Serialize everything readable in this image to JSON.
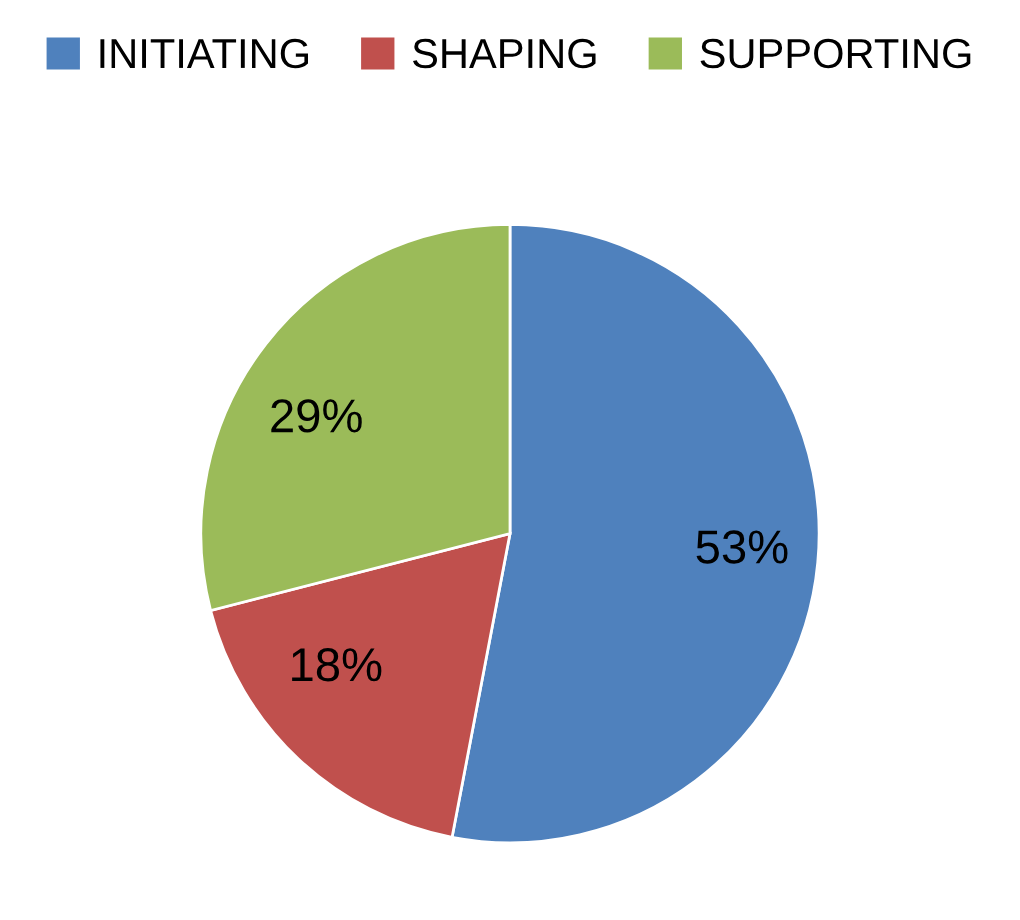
{
  "chart_data": {
    "type": "pie",
    "categories": [
      "INITIATING",
      "SHAPING",
      "SUPPORTING"
    ],
    "values": [
      53,
      18,
      29
    ],
    "colors": [
      "#4f81bd",
      "#c0504d",
      "#9bbb59"
    ],
    "value_labels": [
      "53%",
      "18%",
      "29%"
    ],
    "legend": "top"
  }
}
